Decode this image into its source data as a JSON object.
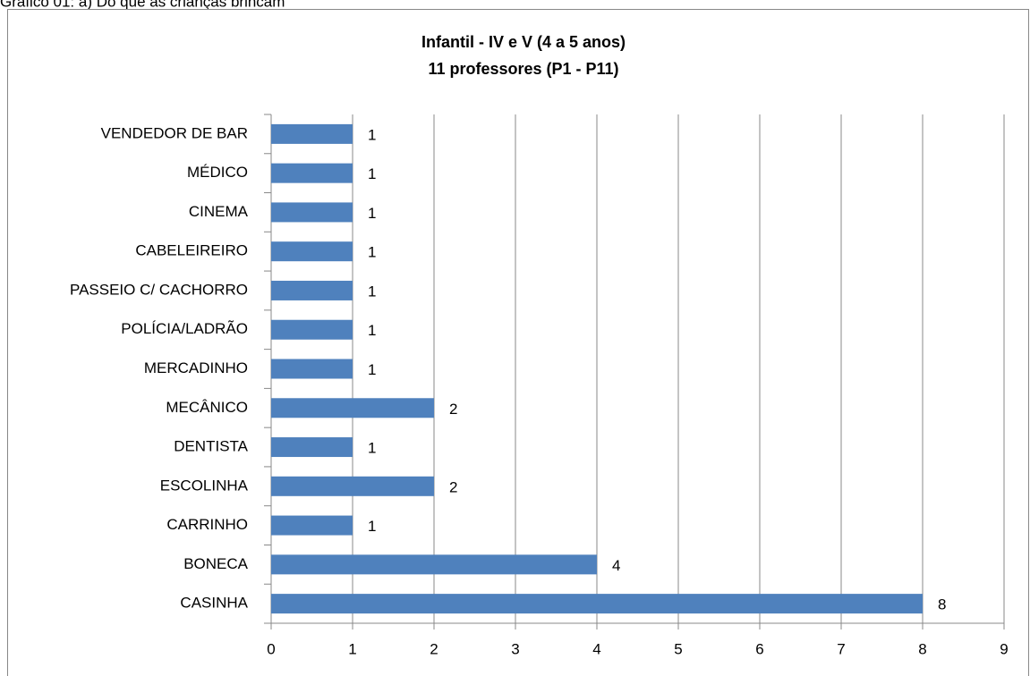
{
  "caption": "Gráfico 01: a) Do que as crianças brincam",
  "chart_data": {
    "type": "bar",
    "orientation": "horizontal",
    "title": "Infantil - IV e V (4 a 5 anos)",
    "subtitle": "11 professores (P1 - P11)",
    "categories": [
      "CASINHA",
      "BONECA",
      "CARRINHO",
      "ESCOLINHA",
      "DENTISTA",
      "MECÂNICO",
      "MERCADINHO",
      "POLÍCIA/LADRÃO",
      "PASSEIO C/ CACHORRO",
      "CABELEIREIRO",
      "CINEMA",
      "MÉDICO",
      "VENDEDOR DE BAR"
    ],
    "values": [
      8,
      4,
      1,
      2,
      1,
      2,
      1,
      1,
      1,
      1,
      1,
      1,
      1
    ],
    "color": "#4f81bd",
    "xlim": [
      0,
      9
    ],
    "xticks": [
      0,
      1,
      2,
      3,
      4,
      5,
      6,
      7,
      8,
      9
    ],
    "grid": true
  }
}
